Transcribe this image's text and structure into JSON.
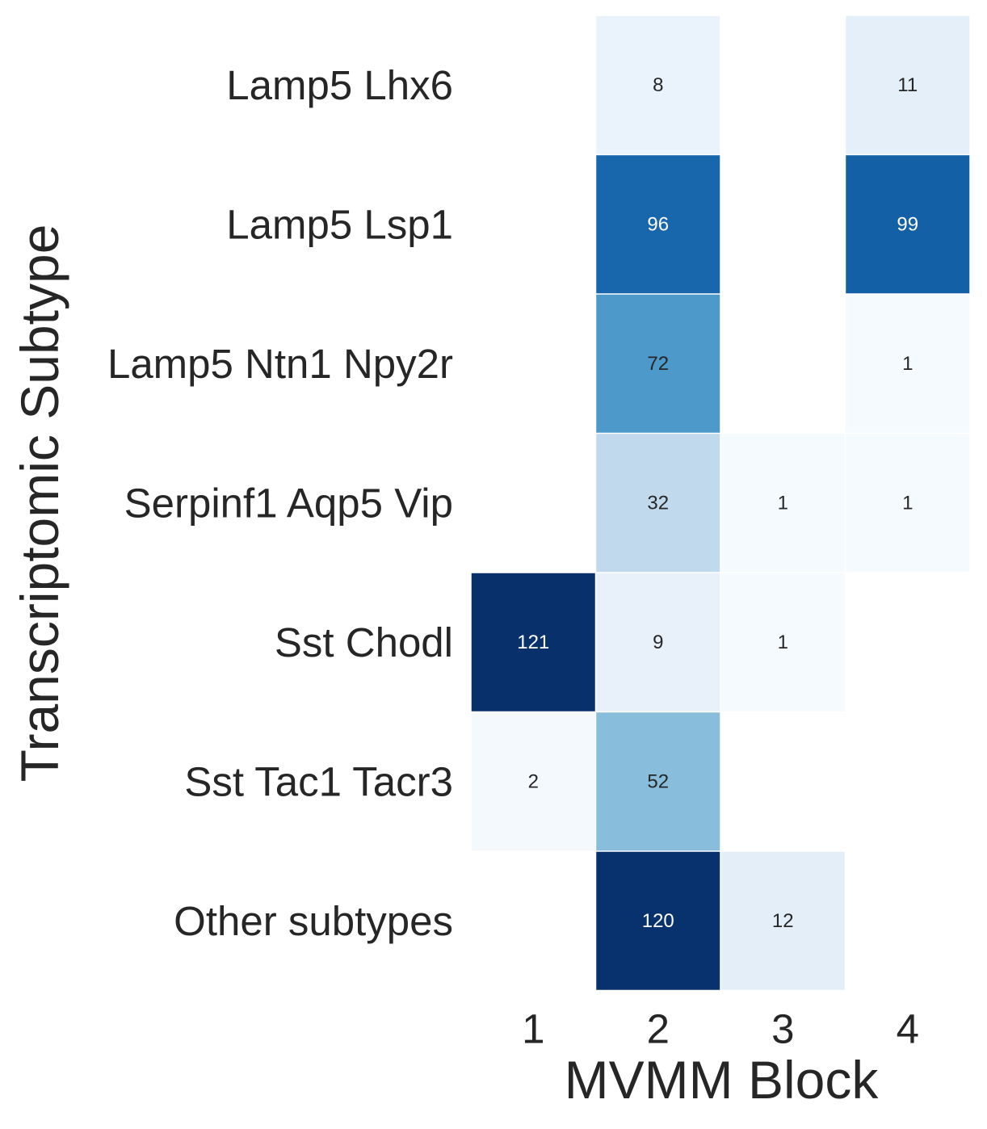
{
  "chart_data": {
    "type": "heatmap",
    "title": "",
    "xlabel": "MVMM Block",
    "ylabel": "Transcriptomic Subtype",
    "x_categories": [
      "1",
      "2",
      "3",
      "4"
    ],
    "y_categories": [
      "Lamp5 Lhx6",
      "Lamp5 Lsp1",
      "Lamp5 Ntn1 Npy2r",
      "Serpinf1 Aqp5 Vip",
      "Sst Chodl",
      "Sst Tac1 Tacr3",
      "Other subtypes"
    ],
    "values": [
      [
        null,
        8,
        null,
        11
      ],
      [
        null,
        96,
        null,
        99
      ],
      [
        null,
        72,
        null,
        1
      ],
      [
        null,
        32,
        1,
        1
      ],
      [
        121,
        9,
        1,
        null
      ],
      [
        2,
        52,
        null,
        null
      ],
      [
        null,
        120,
        12,
        null
      ]
    ],
    "colormap": "Blues",
    "vmin": 0,
    "vmax": 121,
    "cell_annotations": true,
    "empty_cell_color": "#ffffff",
    "grid": false
  }
}
